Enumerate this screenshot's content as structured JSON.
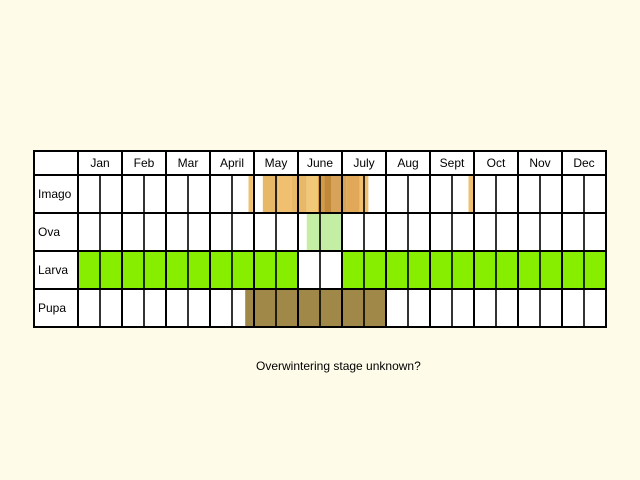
{
  "chart_data": {
    "type": "heatmap",
    "title": "",
    "months": [
      "Jan",
      "Feb",
      "Mar",
      "April",
      "May",
      "June",
      "July",
      "Aug",
      "Sept",
      "Oct",
      "Nov",
      "Dec"
    ],
    "periods_per_month": 2,
    "rows": [
      {
        "label": "Imago",
        "marks": [
          {
            "start": 7.75,
            "end": 7.95,
            "color": "#f0c070"
          },
          {
            "start": 8.4,
            "end": 9.1,
            "color": "#e6b868"
          },
          {
            "start": 9.1,
            "end": 9.7,
            "color": "#f0c070"
          },
          {
            "start": 9.7,
            "end": 10.4,
            "color": "#e8b868"
          },
          {
            "start": 10.4,
            "end": 10.9,
            "color": "#f0c878"
          },
          {
            "start": 10.9,
            "end": 11.2,
            "color": "#d49a48"
          },
          {
            "start": 11.2,
            "end": 11.5,
            "color": "#c08838"
          },
          {
            "start": 11.5,
            "end": 12.2,
            "color": "#d6a358"
          },
          {
            "start": 12.2,
            "end": 12.8,
            "color": "#e0a858"
          },
          {
            "start": 12.8,
            "end": 13.2,
            "color": "#f0c070"
          },
          {
            "start": 17.75,
            "end": 18.0,
            "color": "#f0c070"
          }
        ]
      },
      {
        "label": "Ova",
        "marks": [
          {
            "start": 10.4,
            "end": 12.0,
            "color": "#c4eea4"
          }
        ]
      },
      {
        "label": "Larva",
        "marks": [
          {
            "start": 0,
            "end": 10.0,
            "color": "#88ee00"
          },
          {
            "start": 12.0,
            "end": 24.0,
            "color": "#88ee00"
          }
        ]
      },
      {
        "label": "Pupa",
        "marks": [
          {
            "start": 7.6,
            "end": 14.0,
            "color": "#a08848"
          }
        ]
      }
    ]
  },
  "note": "Overwintering stage unknown?"
}
